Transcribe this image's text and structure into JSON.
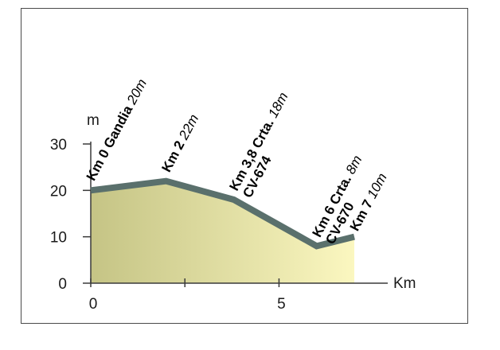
{
  "chart_data": {
    "type": "area",
    "title": "",
    "xlabel": "Km",
    "ylabel": "m",
    "xlim": [
      0,
      7
    ],
    "ylim": [
      0,
      30
    ],
    "x_ticks": [
      0,
      5
    ],
    "x_minor_ticks": [
      2.5
    ],
    "y_ticks": [
      0,
      10,
      20,
      30
    ],
    "x": [
      0,
      2,
      3.8,
      6,
      7
    ],
    "y": [
      20,
      22,
      18,
      8,
      10
    ],
    "point_labels": [
      {
        "km": "Km 0",
        "place": "Gandia",
        "alt": "20m"
      },
      {
        "km": "Km 2",
        "place": "",
        "alt": "22m"
      },
      {
        "km": "Km 3,8 Crta.",
        "place": "CV-674",
        "alt": "18m"
      },
      {
        "km": "Km 6 Crta.",
        "place": "CV-670",
        "alt": "8m"
      },
      {
        "km": "Km 7",
        "place": "",
        "alt": "10m"
      }
    ],
    "colors": {
      "profile_line": "#5a706c",
      "fill_left": "#c5c485",
      "fill_right": "#fbf7c0",
      "axis": "#3a3a3a"
    }
  }
}
